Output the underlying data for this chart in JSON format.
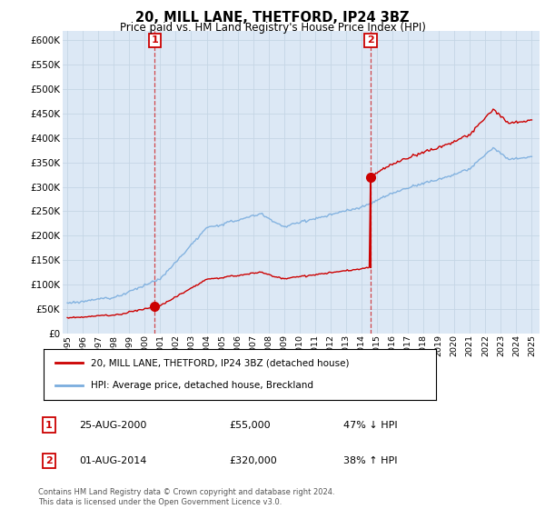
{
  "title": "20, MILL LANE, THETFORD, IP24 3BZ",
  "subtitle": "Price paid vs. HM Land Registry's House Price Index (HPI)",
  "legend_line1": "20, MILL LANE, THETFORD, IP24 3BZ (detached house)",
  "legend_line2": "HPI: Average price, detached house, Breckland",
  "transaction1_date": "25-AUG-2000",
  "transaction1_price": "£55,000",
  "transaction1_hpi": "47% ↓ HPI",
  "transaction1_year": 2000.65,
  "transaction1_value": 55000,
  "transaction2_date": "01-AUG-2014",
  "transaction2_price": "£320,000",
  "transaction2_hpi": "38% ↑ HPI",
  "transaction2_year": 2014.58,
  "transaction2_value": 320000,
  "property_color": "#cc0000",
  "hpi_color": "#7aadde",
  "background_color": "#dce8f5",
  "grid_color": "#c8d8e8",
  "outer_bg": "#ffffff",
  "footnote": "Contains HM Land Registry data © Crown copyright and database right 2024.\nThis data is licensed under the Open Government Licence v3.0.",
  "ylim": [
    0,
    620000
  ],
  "yticks": [
    0,
    50000,
    100000,
    150000,
    200000,
    250000,
    300000,
    350000,
    400000,
    450000,
    500000,
    550000,
    600000
  ],
  "xlim_start": 1994.7,
  "xlim_end": 2025.5
}
